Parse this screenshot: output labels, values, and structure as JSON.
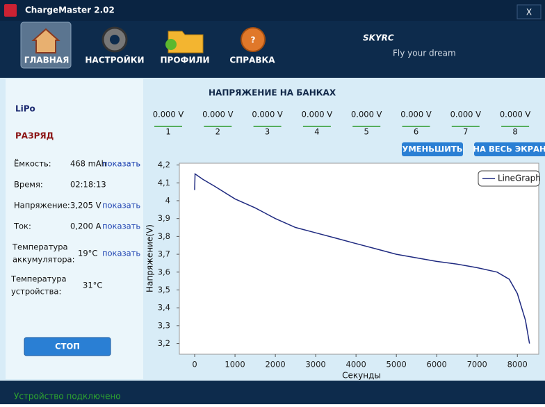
{
  "app": {
    "title": "ChargeMaster 2.02",
    "close": "X",
    "logo": "SKYRC",
    "slogan": "Fly your dream"
  },
  "nav": [
    "ГЛАВНАЯ",
    "НАСТРОЙКИ",
    "ПРОФИЛИ",
    "СПРАВКА"
  ],
  "panel": {
    "battery": "LiPo",
    "mode": "РАЗРЯД",
    "rows": [
      {
        "label": [
          "Ёмкость:"
        ],
        "value": "468 mAh",
        "link": "показать"
      },
      {
        "label": [
          "Время:"
        ],
        "value": "02:18:13"
      },
      {
        "label": [
          "Напряжение:"
        ],
        "value": "3,205 V",
        "link": "показать"
      },
      {
        "label": [
          "Ток:"
        ],
        "value": "0,200 A",
        "link": "показать"
      },
      {
        "label": [
          "Температура",
          "аккумулятора:"
        ],
        "value": "19°C",
        "link": "показать"
      },
      {
        "label": [
          "Температура",
          "устройства:"
        ],
        "value": "31°C"
      }
    ],
    "stop": "СТОП"
  },
  "cells": [
    {
      "value": "0.000 V",
      "number": "1"
    },
    {
      "value": "0.000 V",
      "number": "2"
    },
    {
      "value": "0.000 V",
      "number": "3"
    },
    {
      "value": "0.000 V",
      "number": "4"
    },
    {
      "value": "0.000 V",
      "number": "5"
    },
    {
      "value": "0.000 V",
      "number": "6"
    },
    {
      "value": "0.000 V",
      "number": "7"
    },
    {
      "value": "0.000 V",
      "number": "8"
    }
  ],
  "buttons": [
    "УМЕНЬШИТЬ",
    "НА ВЕСЬ ЭКРАН"
  ],
  "status": "Устройство подключено",
  "chart_data": {
    "type": "line",
    "title": "НАПРЯЖЕНИЕ НА БАНКАХ",
    "x_label": "Секунды",
    "y_label": "Напряжение(V)",
    "x": [
      0,
      10,
      200,
      500,
      1000,
      1500,
      2000,
      2500,
      3000,
      3500,
      4000,
      4500,
      5000,
      5500,
      6000,
      6500,
      7000,
      7500,
      7800,
      8000,
      8200,
      8300
    ],
    "series": [
      {
        "name": "LineGraph",
        "color": "#1f2a80",
        "values": [
          4.06,
          4.15,
          4.12,
          4.08,
          4.01,
          3.96,
          3.9,
          3.85,
          3.82,
          3.79,
          3.76,
          3.73,
          3.7,
          3.68,
          3.66,
          3.645,
          3.625,
          3.6,
          3.56,
          3.48,
          3.33,
          3.2
        ]
      }
    ],
    "xlim": [
      -380,
      8530
    ],
    "ylim": [
      3.14,
      4.21
    ],
    "xticks": [
      0,
      1000,
      2000,
      3000,
      4000,
      5000,
      6000,
      7000,
      8000
    ],
    "yticks": [
      {
        "value": 3.2,
        "label": "3,2"
      },
      {
        "value": 3.3,
        "label": "3,3"
      },
      {
        "value": 3.4,
        "label": "3,4"
      },
      {
        "value": 3.5,
        "label": "3,5"
      },
      {
        "value": 3.6,
        "label": "3,6"
      },
      {
        "value": 3.7,
        "label": "3,7"
      },
      {
        "value": 3.8,
        "label": "3,8"
      },
      {
        "value": 3.9,
        "label": "3,9"
      },
      4,
      {
        "value": 4.1,
        "label": "4,1"
      },
      {
        "value": 4.2,
        "label": "4,2"
      }
    ],
    "grid": false,
    "legend": "top-right"
  }
}
